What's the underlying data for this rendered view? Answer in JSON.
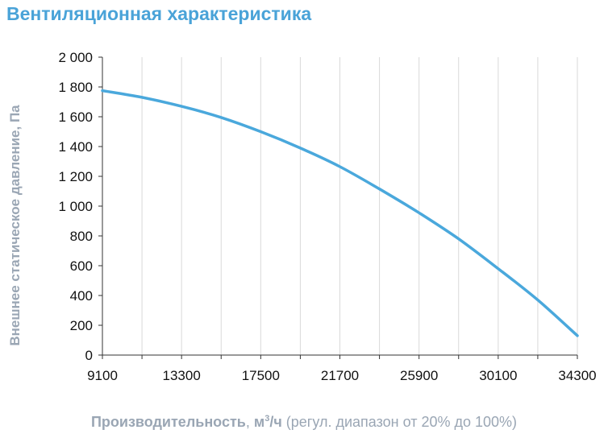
{
  "chart_data": {
    "type": "line",
    "title": "Вентиляционная характеристика",
    "ylabel": "Внешнее статическое давление, Па",
    "xlabel": {
      "bold": "Производительность",
      "sep": ", ",
      "unit_base": "м",
      "unit_sup": "3",
      "unit_rest": "/ч",
      "note": " (регул. диапазон от 20% до 100%)"
    },
    "xlim": [
      9100,
      34300
    ],
    "ylim": [
      0,
      2000
    ],
    "x_ticks": [
      9100,
      13300,
      17500,
      21700,
      25900,
      30100,
      34300
    ],
    "x_tick_labels": [
      "9100",
      "13300",
      "17500",
      "21700",
      "25900",
      "30100",
      "34300"
    ],
    "y_ticks": [
      0,
      200,
      400,
      600,
      800,
      1000,
      1200,
      1400,
      1600,
      1800,
      2000
    ],
    "y_tick_labels": [
      "0",
      "200",
      "400",
      "600",
      "800",
      "1 000",
      "1 200",
      "1 400",
      "1 600",
      "1 800",
      "2 000"
    ],
    "grid": "vertical",
    "line_color": "#4aa8dc",
    "series": [
      {
        "x": [
          9100,
          11200,
          13300,
          15400,
          17500,
          19600,
          21700,
          23800,
          25900,
          28000,
          30100,
          32200,
          34300
        ],
        "y": [
          1775,
          1730,
          1670,
          1595,
          1500,
          1390,
          1265,
          1115,
          955,
          780,
          580,
          370,
          130
        ]
      }
    ]
  }
}
